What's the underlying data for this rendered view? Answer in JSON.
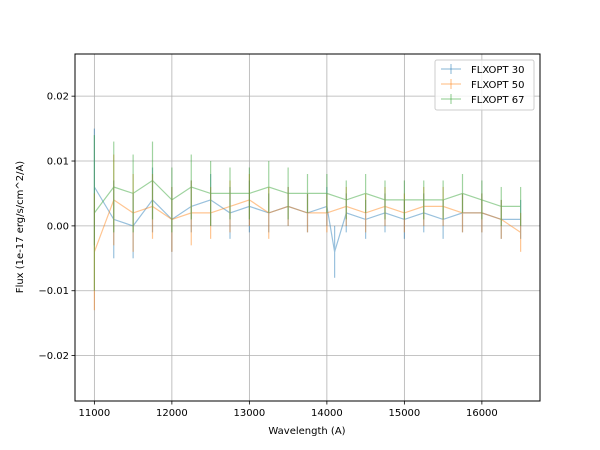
{
  "chart_data": {
    "type": "line",
    "title": "",
    "xlabel": "Wavelength (A)",
    "ylabel": "Flux (1e-17 erg/s/cm^2/A)",
    "xlim": [
      10750,
      16750
    ],
    "ylim": [
      -0.027,
      0.0265
    ],
    "grid": true,
    "legend_position": "upper-right",
    "x_ticks": [
      {
        "value": 11000,
        "label": "11000"
      },
      {
        "value": 12000,
        "label": "12000"
      },
      {
        "value": 13000,
        "label": "13000"
      },
      {
        "value": 14000,
        "label": "14000"
      },
      {
        "value": 15000,
        "label": "15000"
      },
      {
        "value": 16000,
        "label": "16000"
      }
    ],
    "y_ticks": [
      {
        "value": -0.02,
        "label": "−0.02"
      },
      {
        "value": -0.01,
        "label": "−0.01"
      },
      {
        "value": 0.0,
        "label": "0.00"
      },
      {
        "value": 0.01,
        "label": "0.01"
      },
      {
        "value": 0.02,
        "label": "0.02"
      }
    ],
    "series": [
      {
        "name": "FLXOPT 30",
        "color": "#1f77b4",
        "x": [
          11000,
          11250,
          11500,
          11750,
          12000,
          12250,
          12500,
          12750,
          13000,
          13250,
          13500,
          13750,
          14000,
          14100,
          14250,
          14500,
          14750,
          15000,
          15250,
          15500,
          15750,
          16000,
          16250,
          16500
        ],
        "y": [
          0.006,
          0.001,
          0.0,
          0.004,
          0.001,
          0.003,
          0.004,
          0.002,
          0.003,
          0.002,
          0.003,
          0.002,
          0.003,
          -0.004,
          0.002,
          0.001,
          0.002,
          0.001,
          0.002,
          0.001,
          0.002,
          0.002,
          0.001,
          0.001
        ],
        "err": [
          0.009,
          0.006,
          0.005,
          0.005,
          0.005,
          0.004,
          0.004,
          0.004,
          0.004,
          0.003,
          0.003,
          0.003,
          0.003,
          0.004,
          0.003,
          0.003,
          0.003,
          0.003,
          0.003,
          0.003,
          0.003,
          0.003,
          0.003,
          0.003
        ]
      },
      {
        "name": "FLXOPT 50",
        "color": "#ff7f0e",
        "x": [
          11000,
          11250,
          11500,
          11750,
          12000,
          12250,
          12500,
          12750,
          13000,
          13250,
          13500,
          13750,
          14000,
          14250,
          14500,
          14750,
          15000,
          15250,
          15500,
          15750,
          16000,
          16250,
          16500
        ],
        "y": [
          -0.004,
          0.004,
          0.002,
          0.003,
          0.001,
          0.002,
          0.002,
          0.003,
          0.004,
          0.002,
          0.003,
          0.002,
          0.002,
          0.003,
          0.002,
          0.003,
          0.002,
          0.003,
          0.003,
          0.002,
          0.002,
          0.001,
          -0.001
        ],
        "err": [
          0.009,
          0.007,
          0.006,
          0.005,
          0.005,
          0.005,
          0.004,
          0.004,
          0.004,
          0.004,
          0.003,
          0.003,
          0.003,
          0.003,
          0.003,
          0.003,
          0.003,
          0.003,
          0.003,
          0.003,
          0.003,
          0.003,
          0.003
        ]
      },
      {
        "name": "FLXOPT 67",
        "color": "#2ca02c",
        "x": [
          11000,
          11250,
          11500,
          11750,
          12000,
          12250,
          12500,
          12750,
          13000,
          13250,
          13500,
          13750,
          14000,
          14250,
          14500,
          14750,
          15000,
          15250,
          15500,
          15750,
          16000,
          16250,
          16500
        ],
        "y": [
          0.002,
          0.006,
          0.005,
          0.007,
          0.004,
          0.006,
          0.005,
          0.005,
          0.005,
          0.006,
          0.005,
          0.005,
          0.005,
          0.004,
          0.005,
          0.004,
          0.004,
          0.004,
          0.004,
          0.005,
          0.004,
          0.003,
          0.003
        ],
        "err": [
          0.012,
          0.007,
          0.006,
          0.006,
          0.005,
          0.005,
          0.005,
          0.004,
          0.004,
          0.004,
          0.004,
          0.003,
          0.003,
          0.003,
          0.003,
          0.003,
          0.003,
          0.003,
          0.003,
          0.003,
          0.003,
          0.003,
          0.003
        ]
      }
    ]
  }
}
